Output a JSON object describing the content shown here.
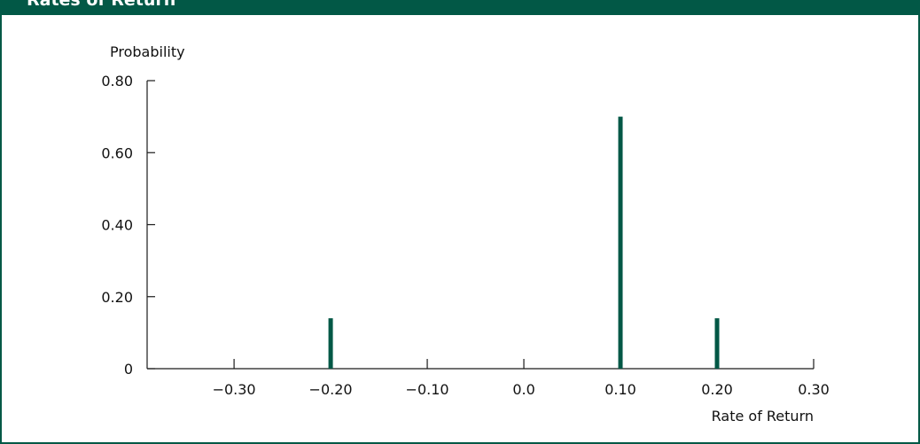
{
  "title": "Rates of Return",
  "colors": {
    "accent": "#025846",
    "axis": "#1a1a1a",
    "text": "#111111"
  },
  "chart_data": {
    "type": "bar",
    "title": "Rates of Return",
    "xlabel": "Rate of Return",
    "ylabel": "Probability",
    "x": [
      -0.2,
      0.1,
      0.2
    ],
    "values": [
      0.14,
      0.7,
      0.14
    ],
    "xlim": [
      -0.39,
      0.3
    ],
    "ylim": [
      0,
      0.8
    ],
    "xticks": [
      -0.3,
      -0.2,
      -0.1,
      0.0,
      0.1,
      0.2,
      0.3
    ],
    "xtick_labels": [
      "−0.30",
      "−0.20",
      "−0.10",
      "0.0",
      "0.10",
      "0.20",
      "0.30"
    ],
    "yticks": [
      0,
      0.2,
      0.4,
      0.6,
      0.8
    ],
    "ytick_labels": [
      "0",
      "0.20",
      "0.40",
      "0.60",
      "0.80"
    ],
    "grid": false,
    "legend": "none"
  }
}
